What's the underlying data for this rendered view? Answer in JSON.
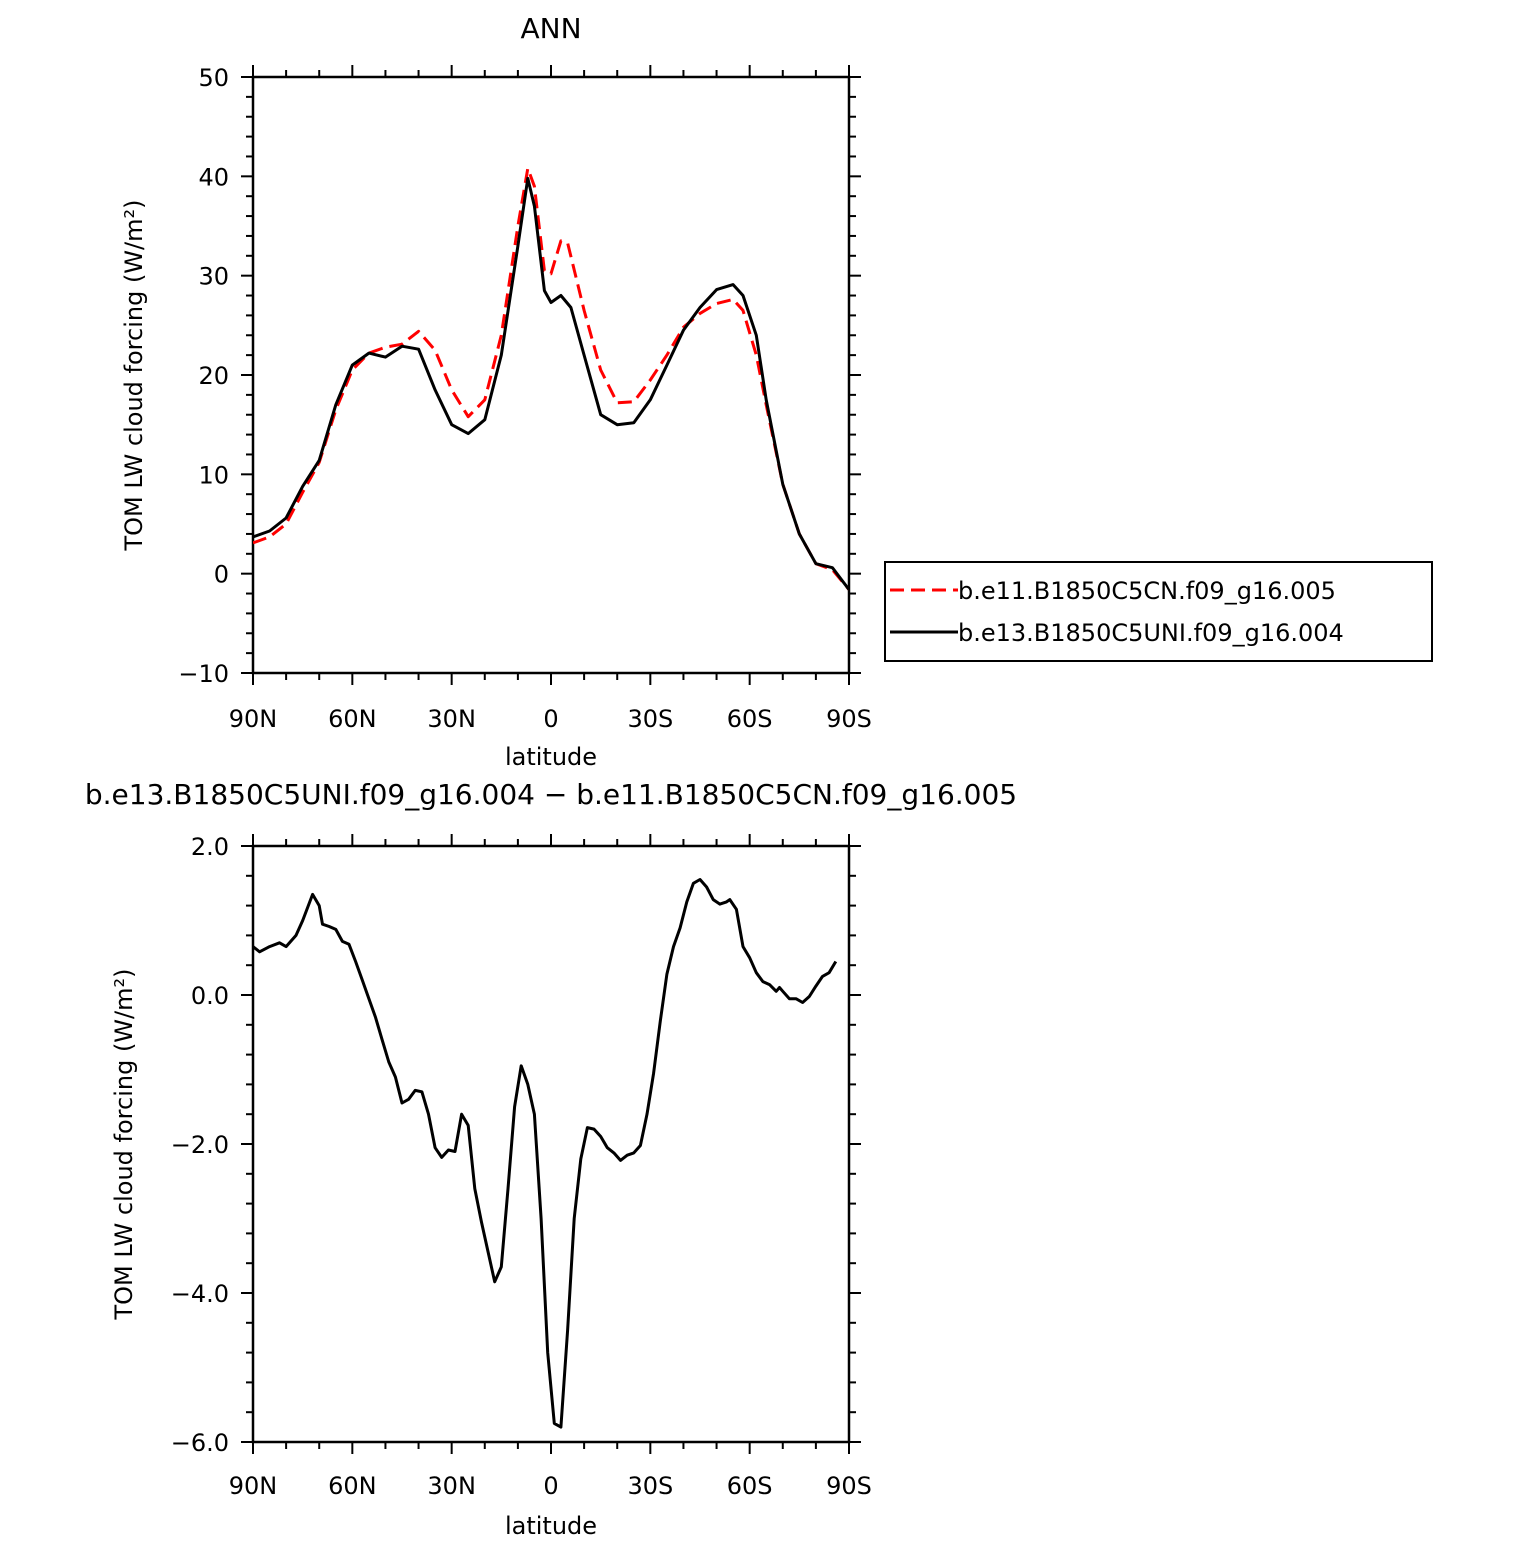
{
  "colors": {
    "series_red": "#ff0000",
    "series_black": "#000000"
  },
  "chart_data": [
    {
      "type": "line",
      "title": "ANN",
      "xlabel": "latitude",
      "ylabel": "TOM LW cloud forcing (W/m²)",
      "ylim": [
        -10,
        50
      ],
      "xlim": [
        90,
        -90
      ],
      "x_ticks": [
        {
          "v": 90,
          "label": "90N"
        },
        {
          "v": 60,
          "label": "60N"
        },
        {
          "v": 30,
          "label": "30N"
        },
        {
          "v": 0,
          "label": "0"
        },
        {
          "v": -30,
          "label": "30S"
        },
        {
          "v": -60,
          "label": "60S"
        },
        {
          "v": -90,
          "label": "90S"
        }
      ],
      "y_ticks": [
        {
          "v": -10,
          "label": "−10"
        },
        {
          "v": 0,
          "label": "0"
        },
        {
          "v": 10,
          "label": "10"
        },
        {
          "v": 20,
          "label": "20"
        },
        {
          "v": 30,
          "label": "30"
        },
        {
          "v": 40,
          "label": "40"
        },
        {
          "v": 50,
          "label": "50"
        }
      ],
      "legend": "right",
      "series": [
        {
          "name": "b.e11.B1850C5CN.f09_g16.005",
          "color": "#ff0000",
          "dash": "dashed",
          "points": [
            [
              90,
              3.1
            ],
            [
              85,
              3.7
            ],
            [
              80,
              5
            ],
            [
              75,
              8.2
            ],
            [
              70,
              11.2
            ],
            [
              65,
              16.5
            ],
            [
              60,
              20.5
            ],
            [
              55,
              22.2
            ],
            [
              50,
              22.8
            ],
            [
              45,
              23.1
            ],
            [
              40,
              24.4
            ],
            [
              35,
              22.5
            ],
            [
              30,
              18.5
            ],
            [
              25,
              15.8
            ],
            [
              20,
              17.5
            ],
            [
              15,
              24
            ],
            [
              10,
              35
            ],
            [
              7,
              40.8
            ],
            [
              5,
              39
            ],
            [
              2,
              30.5
            ],
            [
              0,
              30.2
            ],
            [
              -3,
              33.5
            ],
            [
              -5,
              33.3
            ],
            [
              -10,
              26.5
            ],
            [
              -15,
              20.5
            ],
            [
              -20,
              17.2
            ],
            [
              -25,
              17.3
            ],
            [
              -30,
              19.5
            ],
            [
              -35,
              22
            ],
            [
              -40,
              24.8
            ],
            [
              -45,
              26.2
            ],
            [
              -50,
              27.2
            ],
            [
              -55,
              27.6
            ],
            [
              -58,
              26.5
            ],
            [
              -62,
              22
            ],
            [
              -65,
              17
            ],
            [
              -70,
              9
            ],
            [
              -75,
              4
            ],
            [
              -80,
              1
            ],
            [
              -85,
              0.4
            ],
            [
              -90,
              -1.6
            ]
          ]
        },
        {
          "name": "b.e13.B1850C5UNI.f09_g16.004",
          "color": "#000000",
          "dash": "solid",
          "points": [
            [
              90,
              3.7
            ],
            [
              85,
              4.3
            ],
            [
              80,
              5.6
            ],
            [
              75,
              8.8
            ],
            [
              70,
              11.4
            ],
            [
              65,
              17
            ],
            [
              60,
              21
            ],
            [
              55,
              22.2
            ],
            [
              50,
              21.8
            ],
            [
              45,
              22.9
            ],
            [
              40,
              22.6
            ],
            [
              35,
              18.5
            ],
            [
              30,
              15
            ],
            [
              25,
              14.1
            ],
            [
              20,
              15.5
            ],
            [
              15,
              22
            ],
            [
              10,
              33
            ],
            [
              7,
              39.8
            ],
            [
              5,
              37
            ],
            [
              2,
              28.5
            ],
            [
              0,
              27.3
            ],
            [
              -3,
              28
            ],
            [
              -6,
              26.8
            ],
            [
              -10,
              22
            ],
            [
              -15,
              16
            ],
            [
              -20,
              15
            ],
            [
              -25,
              15.2
            ],
            [
              -30,
              17.5
            ],
            [
              -35,
              21
            ],
            [
              -40,
              24.5
            ],
            [
              -45,
              26.8
            ],
            [
              -50,
              28.6
            ],
            [
              -55,
              29.1
            ],
            [
              -58,
              28
            ],
            [
              -62,
              24
            ],
            [
              -65,
              17.5
            ],
            [
              -70,
              9
            ],
            [
              -75,
              4
            ],
            [
              -80,
              1
            ],
            [
              -85,
              0.6
            ],
            [
              -90,
              -1.6
            ]
          ]
        }
      ]
    },
    {
      "type": "line",
      "title": "b.e13.B1850C5UNI.f09_g16.004 − b.e11.B1850C5CN.f09_g16.005",
      "xlabel": "latitude",
      "ylabel": "TOM LW cloud forcing (W/m²)",
      "ylim": [
        -6,
        2
      ],
      "xlim": [
        90,
        -90
      ],
      "x_ticks": [
        {
          "v": 90,
          "label": "90N"
        },
        {
          "v": 60,
          "label": "60N"
        },
        {
          "v": 30,
          "label": "30N"
        },
        {
          "v": 0,
          "label": "0"
        },
        {
          "v": -30,
          "label": "30S"
        },
        {
          "v": -60,
          "label": "60S"
        },
        {
          "v": -90,
          "label": "90S"
        }
      ],
      "y_ticks": [
        {
          "v": -6,
          "label": "−6.0"
        },
        {
          "v": -4,
          "label": "−4.0"
        },
        {
          "v": -2,
          "label": "−2.0"
        },
        {
          "v": 0,
          "label": "0.0"
        },
        {
          "v": 2,
          "label": "2.0"
        }
      ],
      "series": [
        {
          "color": "#000000",
          "dash": "solid",
          "points": [
            [
              90,
              0.65
            ],
            [
              88,
              0.58
            ],
            [
              85,
              0.65
            ],
            [
              82,
              0.7
            ],
            [
              80,
              0.65
            ],
            [
              77,
              0.8
            ],
            [
              75,
              1
            ],
            [
              72,
              1.35
            ],
            [
              70,
              1.2
            ],
            [
              69,
              0.95
            ],
            [
              67,
              0.92
            ],
            [
              65,
              0.88
            ],
            [
              63,
              0.72
            ],
            [
              61,
              0.68
            ],
            [
              59,
              0.45
            ],
            [
              57,
              0.2
            ],
            [
              55,
              -0.05
            ],
            [
              53,
              -0.3
            ],
            [
              51,
              -0.6
            ],
            [
              49,
              -0.9
            ],
            [
              47,
              -1.1
            ],
            [
              45,
              -1.45
            ],
            [
              43,
              -1.4
            ],
            [
              41,
              -1.28
            ],
            [
              39,
              -1.3
            ],
            [
              37,
              -1.6
            ],
            [
              35,
              -2.05
            ],
            [
              33,
              -2.18
            ],
            [
              31,
              -2.08
            ],
            [
              29,
              -2.1
            ],
            [
              27,
              -1.6
            ],
            [
              25,
              -1.75
            ],
            [
              23,
              -2.6
            ],
            [
              21,
              -3.05
            ],
            [
              19,
              -3.45
            ],
            [
              17,
              -3.85
            ],
            [
              15,
              -3.65
            ],
            [
              13,
              -2.6
            ],
            [
              11,
              -1.5
            ],
            [
              9,
              -0.95
            ],
            [
              7,
              -1.2
            ],
            [
              5,
              -1.6
            ],
            [
              3,
              -3
            ],
            [
              1,
              -4.8
            ],
            [
              -1,
              -5.75
            ],
            [
              -3,
              -5.8
            ],
            [
              -5,
              -4.5
            ],
            [
              -7,
              -3
            ],
            [
              -9,
              -2.2
            ],
            [
              -11,
              -1.78
            ],
            [
              -13,
              -1.8
            ],
            [
              -15,
              -1.9
            ],
            [
              -17,
              -2.05
            ],
            [
              -19,
              -2.12
            ],
            [
              -21,
              -2.22
            ],
            [
              -23,
              -2.15
            ],
            [
              -25,
              -2.12
            ],
            [
              -27,
              -2.02
            ],
            [
              -29,
              -1.6
            ],
            [
              -31,
              -1.05
            ],
            [
              -33,
              -0.35
            ],
            [
              -35,
              0.28
            ],
            [
              -37,
              0.65
            ],
            [
              -39,
              0.9
            ],
            [
              -41,
              1.25
            ],
            [
              -43,
              1.5
            ],
            [
              -45,
              1.55
            ],
            [
              -47,
              1.45
            ],
            [
              -49,
              1.28
            ],
            [
              -51,
              1.22
            ],
            [
              -53,
              1.25
            ],
            [
              -54,
              1.28
            ],
            [
              -56,
              1.15
            ],
            [
              -58,
              0.65
            ],
            [
              -60,
              0.5
            ],
            [
              -62,
              0.3
            ],
            [
              -64,
              0.18
            ],
            [
              -66,
              0.14
            ],
            [
              -68,
              0.05
            ],
            [
              -69,
              0.1
            ],
            [
              -70,
              0.05
            ],
            [
              -72,
              -0.05
            ],
            [
              -74,
              -0.05
            ],
            [
              -76,
              -0.1
            ],
            [
              -78,
              -0.02
            ],
            [
              -80,
              0.12
            ],
            [
              -82,
              0.25
            ],
            [
              -84,
              0.3
            ],
            [
              -86,
              0.45
            ]
          ]
        }
      ]
    }
  ]
}
